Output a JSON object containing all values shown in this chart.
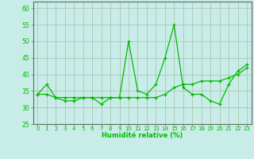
{
  "x": [
    0,
    1,
    2,
    3,
    4,
    5,
    6,
    7,
    8,
    9,
    10,
    11,
    12,
    13,
    14,
    15,
    16,
    17,
    18,
    19,
    20,
    21,
    22,
    23
  ],
  "y_main": [
    34,
    37,
    33,
    32,
    32,
    33,
    33,
    31,
    33,
    33,
    50,
    35,
    34,
    37,
    45,
    55,
    36,
    34,
    34,
    32,
    31,
    37,
    41,
    43
  ],
  "y_smooth": [
    34,
    34,
    33,
    33,
    33,
    33,
    33,
    33,
    33,
    33,
    33,
    33,
    33,
    33,
    34,
    36,
    37,
    37,
    38,
    38,
    38,
    39,
    40,
    42
  ],
  "bg_color": "#c8ede8",
  "grid_color": "#aabbaa",
  "line_color": "#00bb00",
  "xlabel": "Humidité relative (%)",
  "ylim": [
    25,
    62
  ],
  "yticks": [
    25,
    30,
    35,
    40,
    45,
    50,
    55,
    60
  ],
  "xlim": [
    -0.5,
    23.5
  ],
  "xtick_labels": [
    "0",
    "1",
    "2",
    "3",
    "4",
    "5",
    "6",
    "7",
    "8",
    "9",
    "10",
    "11",
    "12",
    "13",
    "14",
    "15",
    "16",
    "17",
    "18",
    "19",
    "20",
    "21",
    "22",
    "23"
  ]
}
